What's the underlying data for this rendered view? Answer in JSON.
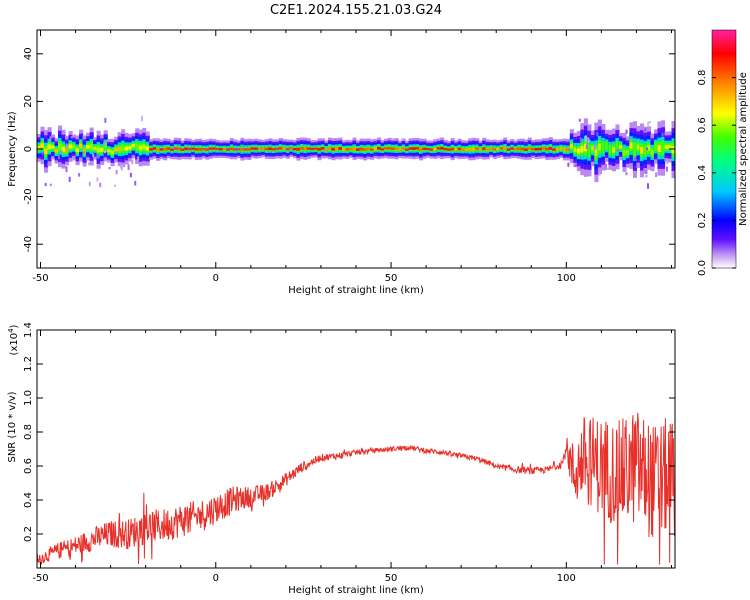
{
  "title": "C2E1.2024.155.21.03.G24",
  "chart_data": [
    {
      "type": "heatmap",
      "xlabel": "Height of straight line (km)",
      "ylabel": "Frequency (Hz)",
      "xlim": [
        -51,
        131
      ],
      "ylim": [
        -50,
        50
      ],
      "xticks": [
        -50,
        0,
        50,
        100
      ],
      "xtick_labels": [
        "-50",
        "0",
        "50",
        "100"
      ],
      "yticks": [
        -40,
        -20,
        0,
        20,
        40
      ],
      "ytick_labels": [
        "-40",
        "-20",
        "0",
        "20",
        "40"
      ],
      "colorbar": {
        "label": "Normalized spectral amplitude",
        "range": [
          0,
          1
        ],
        "ticks": [
          0.0,
          0.2,
          0.4,
          0.6,
          0.8
        ],
        "tick_labels": [
          "0.0",
          "0.2",
          "0.4",
          "0.6",
          "0.8"
        ],
        "colors": [
          "#ffffff",
          "#c8a0f0",
          "#6010ff",
          "#0000ff",
          "#00c8ff",
          "#00ff80",
          "#40ff00",
          "#ffff00",
          "#ff8000",
          "#ff0000",
          "#ff20a0"
        ]
      },
      "band": {
        "center_frequency_hz": 0,
        "segments": [
          {
            "x": [
              -51,
              -20
            ],
            "halfwidth_hz": 3,
            "max_amplitude": 0.75
          },
          {
            "x": [
              -20,
              20
            ],
            "halfwidth_hz": 2,
            "max_amplitude": 1.0
          },
          {
            "x": [
              20,
              100
            ],
            "halfwidth_hz": 2,
            "max_amplitude": 0.95
          },
          {
            "x": [
              100,
              131
            ],
            "halfwidth_hz": 4,
            "max_amplitude": 0.7
          }
        ]
      }
    },
    {
      "type": "line",
      "xlabel": "Height of straight line (km)",
      "ylabel": "SNR (10 * v/v)",
      "multiplier": "(x10",
      "multiplier_exp": "4",
      "multiplier_close": ")",
      "xlim": [
        -51,
        131
      ],
      "ylim": [
        0,
        1.4
      ],
      "xticks": [
        -50,
        0,
        50,
        100
      ],
      "xtick_labels": [
        "-50",
        "0",
        "50",
        "100"
      ],
      "yticks": [
        0.2,
        0.4,
        0.6,
        0.8,
        1.0,
        1.2,
        1.4
      ],
      "ytick_labels": [
        "0.2",
        "0.4",
        "0.6",
        "0.8",
        "1.0",
        "1.2",
        "1.4"
      ],
      "series": [
        {
          "color": "#e8302a",
          "x": [
            -51,
            -45,
            -40,
            -35,
            -30,
            -25,
            -20,
            -15,
            -10,
            -5,
            0,
            5,
            10,
            15,
            20,
            25,
            30,
            35,
            40,
            45,
            50,
            55,
            60,
            65,
            70,
            75,
            80,
            85,
            90,
            95,
            99,
            100,
            102,
            105,
            110,
            115,
            120,
            125,
            130,
            131
          ],
          "y": [
            0.05,
            0.1,
            0.13,
            0.17,
            0.2,
            0.2,
            0.24,
            0.25,
            0.28,
            0.3,
            0.35,
            0.4,
            0.42,
            0.45,
            0.52,
            0.6,
            0.65,
            0.66,
            0.68,
            0.69,
            0.7,
            0.71,
            0.69,
            0.68,
            0.66,
            0.64,
            0.6,
            0.58,
            0.57,
            0.58,
            0.62,
            0.72,
            0.55,
            0.65,
            0.6,
            0.55,
            0.6,
            0.5,
            0.55,
            0.5
          ],
          "fluctuation": [
            0.03,
            0.05,
            0.06,
            0.07,
            0.08,
            0.09,
            0.1,
            0.1,
            0.1,
            0.1,
            0.09,
            0.08,
            0.06,
            0.05,
            0.04,
            0.03,
            0.02,
            0.02,
            0.015,
            0.015,
            0.015,
            0.015,
            0.015,
            0.015,
            0.015,
            0.015,
            0.015,
            0.02,
            0.02,
            0.02,
            0.03,
            0.05,
            0.2,
            0.25,
            0.3,
            0.32,
            0.35,
            0.35,
            0.35,
            0.35
          ]
        }
      ]
    }
  ]
}
